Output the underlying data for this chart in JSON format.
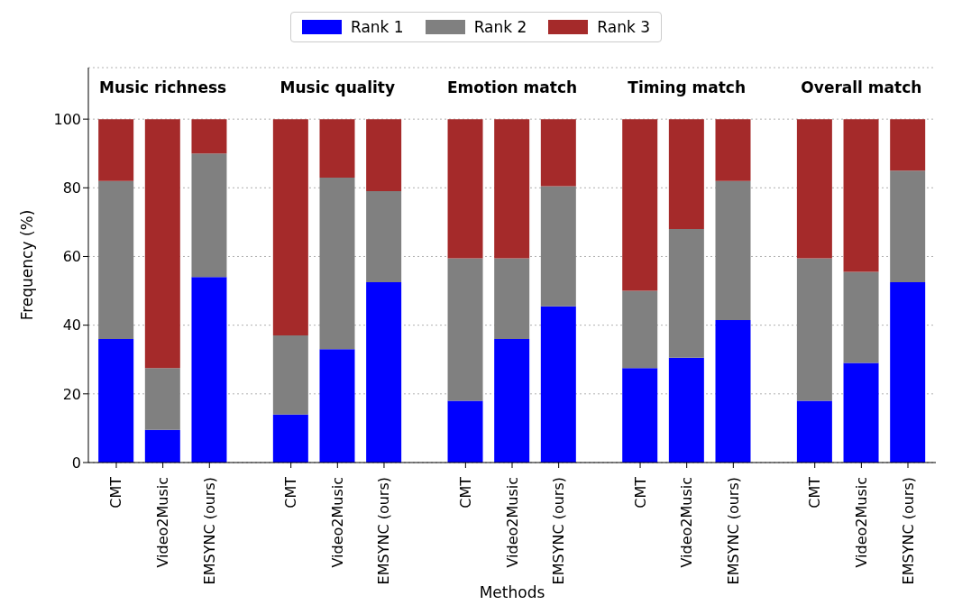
{
  "chart_data": {
    "type": "bar",
    "stacked": true,
    "xlabel": "Methods",
    "ylabel": "Frequency (%)",
    "categories": [
      "CMT",
      "Video2Music",
      "EMSYNC (ours)",
      "CMT",
      "Video2Music",
      "EMSYNC (ours)",
      "CMT",
      "Video2Music",
      "EMSYNC (ours)",
      "CMT",
      "Video2Music",
      "EMSYNC (ours)",
      "CMT",
      "Video2Music",
      "EMSYNC (ours)"
    ],
    "series": [
      {
        "name": "Rank 1",
        "color": "#0000ff",
        "values": [
          36,
          9.5,
          54,
          14,
          33,
          52.5,
          18,
          36,
          45.5,
          27.5,
          30.5,
          41.5,
          18,
          29,
          52.5
        ]
      },
      {
        "name": "Rank 2",
        "color": "#808080",
        "values": [
          46,
          18,
          36,
          23,
          50,
          26.5,
          41.5,
          23.5,
          35,
          22.5,
          37.5,
          40.5,
          41.5,
          26.5,
          32.5
        ]
      },
      {
        "name": "Rank 3",
        "color": "#a52a2a",
        "values": [
          18,
          72.5,
          10,
          63,
          17,
          21,
          40.5,
          40.5,
          19.5,
          50,
          32,
          18,
          40.5,
          44.5,
          15
        ]
      }
    ],
    "annotations": [
      "Music richness",
      "Music quality",
      "Emotion match",
      "Timing match",
      "Overall match"
    ],
    "ylim": [
      0,
      115
    ],
    "yticks": [
      0,
      20,
      40,
      60,
      80,
      100
    ],
    "grid": "y",
    "legend": "top"
  }
}
